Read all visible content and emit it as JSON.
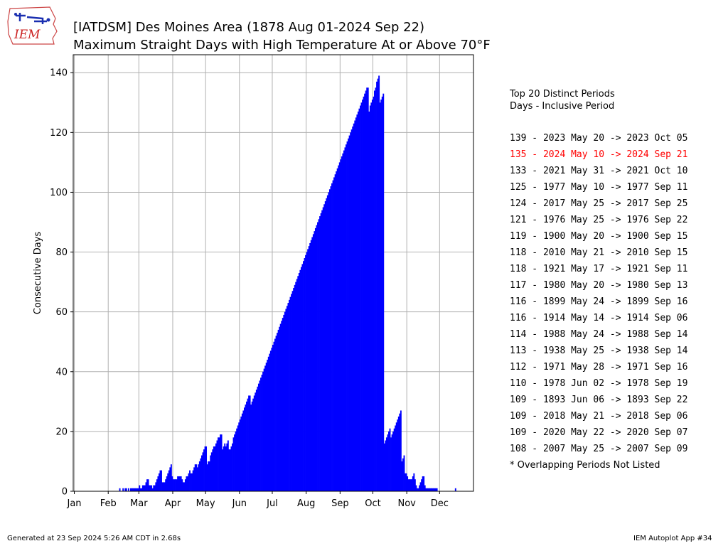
{
  "header": {
    "logo_text": "IEM",
    "title_line1": "[IATDSM] Des Moines Area (1878 Aug 01-2024 Sep 22)",
    "title_line2": "Maximum Straight Days with High Temperature At or Above 70°F"
  },
  "sidebar": {
    "heading1": "Top 20 Distinct Periods",
    "heading2": "Days - Inclusive Period",
    "periods": [
      {
        "text": "139 - 2023 May 20 -> 2023 Oct 05",
        "color": "#000000"
      },
      {
        "text": "135 - 2024 May 10 -> 2024 Sep 21",
        "color": "#ff0000"
      },
      {
        "text": "133 - 2021 May 31 -> 2021 Oct 10",
        "color": "#000000"
      },
      {
        "text": "125 - 1977 May 10 -> 1977 Sep 11",
        "color": "#000000"
      },
      {
        "text": "124 - 2017 May 25 -> 2017 Sep 25",
        "color": "#000000"
      },
      {
        "text": "121 - 1976 May 25 -> 1976 Sep 22",
        "color": "#000000"
      },
      {
        "text": "119 - 1900 May 20 -> 1900 Sep 15",
        "color": "#000000"
      },
      {
        "text": "118 - 2010 May 21 -> 2010 Sep 15",
        "color": "#000000"
      },
      {
        "text": "118 - 1921 May 17 -> 1921 Sep 11",
        "color": "#000000"
      },
      {
        "text": "117 - 1980 May 20 -> 1980 Sep 13",
        "color": "#000000"
      },
      {
        "text": "116 - 1899 May 24 -> 1899 Sep 16",
        "color": "#000000"
      },
      {
        "text": "116 - 1914 May 14 -> 1914 Sep 06",
        "color": "#000000"
      },
      {
        "text": "114 - 1988 May 24 -> 1988 Sep 14",
        "color": "#000000"
      },
      {
        "text": "113 - 1938 May 25 -> 1938 Sep 14",
        "color": "#000000"
      },
      {
        "text": "112 - 1971 May 28 -> 1971 Sep 16",
        "color": "#000000"
      },
      {
        "text": "110 - 1978 Jun 02 -> 1978 Sep 19",
        "color": "#000000"
      },
      {
        "text": "109 - 1893 Jun 06 -> 1893 Sep 22",
        "color": "#000000"
      },
      {
        "text": "109 - 2018 May 21 -> 2018 Sep 06",
        "color": "#000000"
      },
      {
        "text": "109 - 2020 May 22 -> 2020 Sep 07",
        "color": "#000000"
      },
      {
        "text": "108 - 2007 May 25 -> 2007 Sep 09",
        "color": "#000000"
      }
    ],
    "footnote": "* Overlapping Periods Not Listed"
  },
  "footer": {
    "left": "Generated at 23 Sep 2024 5:26 AM CDT in 2.68s",
    "right": "IEM Autoplot App #34"
  },
  "chart_data": {
    "type": "bar",
    "title": "",
    "xlabel": "",
    "ylabel": "Consecutive Days",
    "xlim": [
      0,
      366
    ],
    "ylim": [
      0,
      146
    ],
    "grid": true,
    "bar_color": "#0000ff",
    "x_ticks": [
      {
        "label": "Jan",
        "day": 1
      },
      {
        "label": "Feb",
        "day": 32
      },
      {
        "label": "Mar",
        "day": 60
      },
      {
        "label": "Apr",
        "day": 91
      },
      {
        "label": "May",
        "day": 121
      },
      {
        "label": "Jun",
        "day": 152
      },
      {
        "label": "Jul",
        "day": 182
      },
      {
        "label": "Aug",
        "day": 213
      },
      {
        "label": "Sep",
        "day": 244
      },
      {
        "label": "Oct",
        "day": 274
      },
      {
        "label": "Nov",
        "day": 305
      },
      {
        "label": "Dec",
        "day": 335
      }
    ],
    "y_ticks": [
      0,
      20,
      40,
      60,
      80,
      100,
      120,
      140
    ],
    "x_unit": "day of year",
    "y_values": [
      0,
      0,
      0,
      0,
      0,
      0,
      0,
      0,
      0,
      0,
      0,
      0,
      0,
      0,
      0,
      0,
      0,
      0,
      0,
      0,
      0,
      0,
      0,
      0,
      0,
      0,
      0,
      0,
      0,
      0,
      0,
      0,
      0,
      0,
      0,
      0,
      0,
      0,
      0,
      0,
      0,
      1,
      0,
      0,
      1,
      0,
      1,
      1,
      0,
      1,
      0,
      1,
      1,
      1,
      1,
      1,
      1,
      1,
      1,
      2,
      1,
      1,
      2,
      2,
      2,
      3,
      4,
      4,
      2,
      2,
      2,
      1,
      2,
      2,
      3,
      4,
      5,
      6,
      7,
      7,
      3,
      3,
      3,
      4,
      5,
      6,
      7,
      8,
      9,
      5,
      4,
      4,
      4,
      4,
      5,
      5,
      5,
      5,
      4,
      3,
      3,
      4,
      5,
      5,
      6,
      7,
      6,
      6,
      7,
      8,
      9,
      9,
      8,
      9,
      10,
      11,
      12,
      13,
      14,
      15,
      15,
      9,
      10,
      10,
      12,
      13,
      14,
      15,
      15,
      16,
      17,
      18,
      18,
      19,
      19,
      14,
      15,
      16,
      15,
      16,
      17,
      14,
      14,
      15,
      16,
      18,
      19,
      20,
      21,
      22,
      23,
      24,
      25,
      26,
      27,
      28,
      29,
      30,
      31,
      32,
      32,
      29,
      30,
      31,
      32,
      33,
      34,
      35,
      36,
      37,
      38,
      39,
      40,
      41,
      42,
      43,
      44,
      45,
      46,
      47,
      48,
      49,
      50,
      51,
      52,
      53,
      54,
      55,
      56,
      57,
      58,
      59,
      60,
      61,
      62,
      63,
      64,
      65,
      66,
      67,
      68,
      69,
      70,
      71,
      72,
      73,
      74,
      75,
      76,
      77,
      78,
      79,
      80,
      81,
      82,
      83,
      84,
      85,
      86,
      87,
      88,
      89,
      90,
      91,
      92,
      93,
      94,
      95,
      96,
      97,
      98,
      99,
      100,
      101,
      102,
      103,
      104,
      105,
      106,
      107,
      108,
      109,
      110,
      111,
      112,
      113,
      114,
      115,
      116,
      117,
      118,
      119,
      120,
      121,
      122,
      123,
      124,
      125,
      126,
      127,
      128,
      129,
      130,
      131,
      132,
      133,
      134,
      135,
      135,
      127,
      129,
      130,
      131,
      132,
      134,
      135,
      137,
      138,
      139,
      130,
      131,
      132,
      133,
      16,
      17,
      18,
      19,
      20,
      21,
      18,
      19,
      20,
      21,
      22,
      23,
      24,
      25,
      26,
      27,
      10,
      11,
      12,
      6,
      6,
      5,
      4,
      4,
      4,
      4,
      5,
      6,
      4,
      2,
      1,
      1,
      2,
      3,
      4,
      5,
      5,
      2,
      1,
      1,
      1,
      1,
      1,
      1,
      1,
      1,
      1,
      1,
      1,
      0,
      0,
      0,
      0,
      0,
      0,
      0,
      0,
      0,
      0,
      0,
      0,
      0,
      0,
      0,
      0,
      1,
      0,
      0,
      0,
      0,
      0,
      0,
      0,
      0,
      0,
      0,
      0,
      0,
      0,
      0,
      0,
      0,
      0,
      0,
      0,
      0,
      0,
      0,
      0,
      0
    ]
  }
}
